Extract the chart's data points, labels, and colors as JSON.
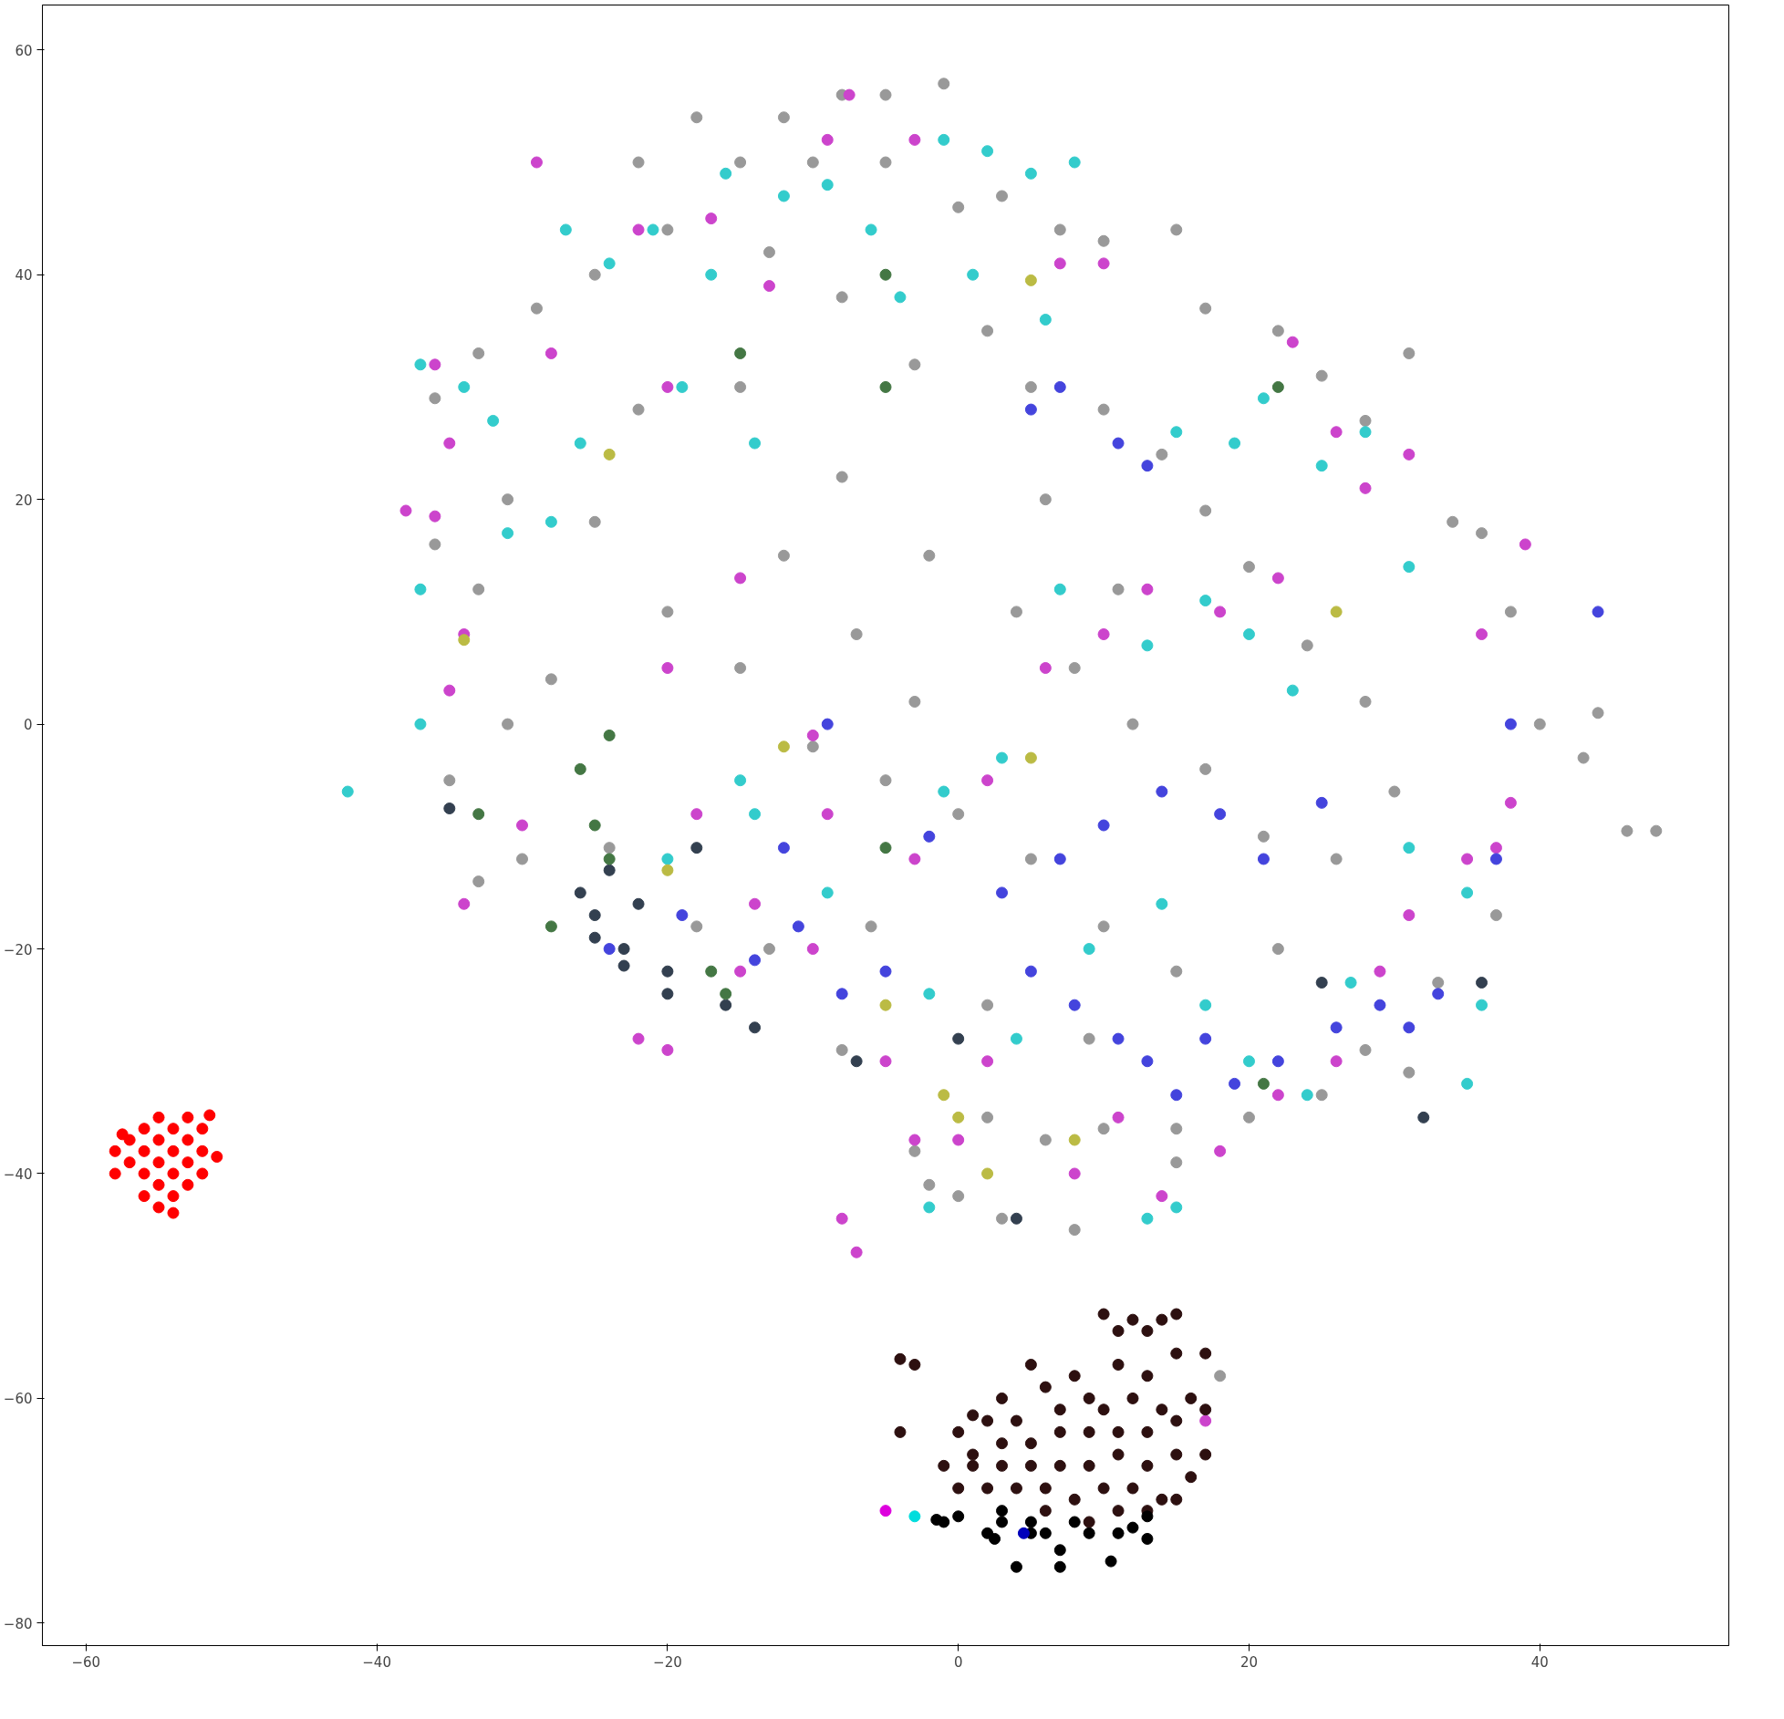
{
  "chart_data": {
    "type": "scatter",
    "marker": "circle",
    "xlim": [
      -63,
      53
    ],
    "ylim": [
      -82,
      64
    ],
    "xticks": [
      -60,
      -40,
      -20,
      0,
      20,
      40
    ],
    "yticks": [
      -80,
      -60,
      -40,
      -20,
      0,
      20,
      40,
      60
    ],
    "series": [
      {
        "color": "#999999",
        "x": [
          -8,
          -5,
          -1,
          -12,
          -18,
          -22,
          -15,
          -10,
          -5,
          0,
          3,
          7,
          10,
          15,
          17,
          22,
          25,
          28,
          31,
          34,
          36,
          38,
          40,
          43,
          44,
          46,
          48,
          37,
          33,
          31,
          28,
          25,
          20,
          15,
          10,
          6,
          2,
          -2,
          0,
          3,
          8,
          15,
          18,
          -3,
          -8,
          -13,
          -18,
          -24,
          -30,
          -33,
          -35,
          -31,
          -28,
          -33,
          -31,
          -36,
          -36,
          -33,
          -29,
          -25,
          -20,
          -13,
          -8,
          -3,
          2,
          5,
          10,
          14,
          17,
          20,
          24,
          28,
          30,
          26,
          22,
          15,
          10,
          5,
          0,
          -5,
          -10,
          -15,
          -20,
          -25,
          -22,
          -15,
          -8,
          -2,
          4,
          8,
          12,
          17,
          21,
          -7,
          -12,
          -3,
          6,
          11,
          2,
          -6,
          9
        ],
        "values": [
          56,
          56,
          57,
          54,
          54,
          50,
          50,
          50,
          50,
          46,
          47,
          44,
          43,
          44,
          37,
          35,
          31,
          27,
          33,
          18,
          17,
          10,
          0,
          -3,
          1,
          -9.5,
          -9.5,
          -17,
          -23,
          -31,
          -29,
          -33,
          -35,
          -36,
          -36,
          -37,
          -35,
          -41,
          -42,
          -44,
          -45,
          -39,
          -58,
          -38,
          -29,
          -20,
          -18,
          -11,
          -12,
          -14,
          -5,
          0,
          4,
          12,
          20,
          16,
          29,
          33,
          37,
          40,
          44,
          42,
          38,
          32,
          35,
          30,
          28,
          24,
          19,
          14,
          7,
          2,
          -6,
          -12,
          -20,
          -22,
          -18,
          -12,
          -8,
          -5,
          -2,
          5,
          10,
          18,
          28,
          30,
          22,
          15,
          10,
          5,
          0,
          -4,
          -10,
          8,
          15,
          2,
          20,
          12,
          -25,
          -18,
          -28
        ]
      },
      {
        "color": "#33cccc",
        "x": [
          -37,
          -37,
          -37,
          -42,
          -34,
          -32,
          -31,
          -27,
          -24,
          -21,
          -16,
          -12,
          -9,
          -6,
          -1,
          2,
          5,
          8,
          -4,
          1,
          6,
          -17,
          -19,
          -14,
          -26,
          -28,
          -20,
          -14,
          -9,
          -2,
          4,
          9,
          14,
          17,
          20,
          24,
          27,
          31,
          35,
          36,
          35,
          31,
          28,
          25,
          21,
          19,
          15,
          17,
          20,
          23,
          13,
          7,
          3,
          -1,
          -15,
          -2,
          15,
          13
        ],
        "values": [
          32,
          12,
          0,
          -6,
          30,
          27,
          17,
          44,
          41,
          44,
          49,
          47,
          48,
          44,
          52,
          51,
          49,
          50,
          38,
          40,
          36,
          40,
          30,
          25,
          25,
          18,
          -12,
          -8,
          -15,
          -24,
          -28,
          -20,
          -16,
          -25,
          -30,
          -33,
          -23,
          -11,
          -15,
          -25,
          -32,
          14,
          26,
          23,
          29,
          25,
          26,
          11,
          8,
          3,
          7,
          12,
          -3,
          -6,
          -5,
          -43,
          -43,
          -44
        ]
      },
      {
        "color": "#cc44cc",
        "x": [
          -29,
          -7.5,
          -28,
          -36,
          -38,
          -36,
          -35,
          -34,
          -35,
          -34,
          -30,
          -22,
          -20,
          -15,
          -10,
          -8,
          -7,
          -5,
          -3,
          0,
          2,
          8,
          11,
          14,
          18,
          22,
          26,
          29,
          31,
          35,
          37,
          38,
          39,
          36,
          31,
          28,
          23,
          26,
          22,
          18,
          13,
          10,
          6,
          2,
          -3,
          -9,
          -14,
          -18,
          -20,
          -15,
          -10,
          -22,
          -17,
          -9,
          -3,
          7,
          10,
          17,
          -20,
          -13
        ],
        "values": [
          50,
          56,
          33,
          32,
          19,
          18.5,
          25,
          8,
          3,
          -16,
          -9,
          -28,
          -29,
          -22,
          -20,
          -44,
          -47,
          -30,
          -37,
          -37,
          -30,
          -40,
          -35,
          -42,
          -38,
          -33,
          -30,
          -22,
          -17,
          -12,
          -11,
          -7,
          16,
          8,
          24,
          21,
          34,
          26,
          13,
          10,
          12,
          8,
          5,
          -5,
          -12,
          -8,
          -16,
          -8,
          5,
          13,
          -1,
          44,
          45,
          52,
          52,
          41,
          41,
          -62,
          30,
          39
        ]
      },
      {
        "color": "#4444dd",
        "x": [
          44,
          38,
          37,
          33,
          31,
          29,
          26,
          22,
          19,
          17,
          15,
          13,
          11,
          8,
          5,
          3,
          7,
          10,
          14,
          18,
          21,
          25,
          13,
          11,
          7,
          5,
          -2,
          -5,
          -8,
          -11,
          -14,
          -19,
          -24,
          -9,
          -12
        ],
        "values": [
          10,
          0,
          -12,
          -24,
          -27,
          -25,
          -27,
          -30,
          -32,
          -28,
          -33,
          -30,
          -28,
          -25,
          -22,
          -15,
          -12,
          -9,
          -6,
          -8,
          -12,
          -7,
          23,
          25,
          30,
          28,
          -10,
          -22,
          -24,
          -18,
          -21,
          -17,
          -20,
          0,
          -11
        ]
      },
      {
        "color": "#334050",
        "x": [
          -35,
          -26,
          -25,
          -25,
          -24,
          -23,
          -23,
          -22,
          -20,
          -20,
          -18,
          -16,
          -14,
          32,
          36,
          25,
          0,
          4,
          -7
        ],
        "values": [
          -7.5,
          -15,
          -17,
          -19,
          -13,
          -20,
          -21.5,
          -16,
          -22,
          -24,
          -11,
          -25,
          -27,
          -35,
          -23,
          -23,
          -28,
          -44,
          -30
        ]
      },
      {
        "color": "#447744",
        "x": [
          -28,
          -26,
          -25,
          -24,
          -24,
          -17,
          -16,
          -15,
          -5,
          -5,
          -5,
          21,
          22,
          -33
        ],
        "values": [
          -18,
          -4,
          -9,
          -1,
          -12,
          -22,
          -24,
          33,
          40,
          30,
          -11,
          -32,
          30,
          -8
        ]
      },
      {
        "color": "#bbbb44",
        "x": [
          0,
          -1,
          2,
          8,
          -5,
          5,
          -24,
          -34,
          -20,
          -12,
          5,
          26
        ],
        "values": [
          -35,
          -33,
          -40,
          -37,
          -25,
          39.5,
          24,
          7.5,
          -13,
          -2,
          -3,
          10
        ]
      },
      {
        "color": "#2d1010",
        "x": [
          10,
          12,
          14,
          15,
          11,
          13,
          -4,
          -3,
          1,
          3,
          5,
          6,
          8,
          9,
          11,
          13,
          15,
          17,
          16,
          14,
          12,
          10,
          7,
          4,
          2,
          0,
          -4,
          1,
          3,
          5,
          7,
          9,
          11,
          13,
          15,
          17,
          17,
          15,
          13,
          11,
          9,
          7,
          5,
          3,
          1,
          -1,
          2,
          4,
          6,
          8,
          10,
          12,
          14,
          16,
          0,
          6,
          9,
          11,
          13,
          15
        ],
        "values": [
          -52.5,
          -53,
          -53,
          -52.5,
          -54,
          -54,
          -56.5,
          -57,
          -61.5,
          -60,
          -57,
          -59,
          -58,
          -60,
          -57,
          -58,
          -56,
          -56,
          -60,
          -61,
          -60,
          -61,
          -61,
          -62,
          -62,
          -63,
          -63,
          -65,
          -64,
          -64,
          -63,
          -63,
          -63,
          -63,
          -62,
          -61,
          -65,
          -65,
          -66,
          -65,
          -66,
          -66,
          -66,
          -66,
          -66,
          -66,
          -68,
          -68,
          -68,
          -69,
          -68,
          -68,
          -69,
          -67,
          -68,
          -70,
          -71,
          -70,
          -70,
          -69
        ]
      },
      {
        "color": "#000000",
        "x": [
          -1,
          0,
          2,
          3,
          5,
          6,
          4,
          7,
          7,
          8,
          9,
          10.5,
          11,
          12,
          13,
          13,
          3,
          -1.5,
          2.5,
          5
        ],
        "values": [
          -71,
          -70.5,
          -72,
          -71,
          -71,
          -72,
          -75,
          -73.5,
          -75,
          -71,
          -72,
          -74.5,
          -72,
          -71.5,
          -72.5,
          -70.5,
          -70,
          -70.8,
          -72.5,
          -72
        ]
      },
      {
        "color": "#ff0000",
        "x": [
          -55,
          -53,
          -56,
          -54,
          -52,
          -57,
          -55,
          -53,
          -58,
          -56,
          -54,
          -52,
          -51,
          -57,
          -55,
          -53,
          -58,
          -56,
          -54,
          -52,
          -55,
          -53,
          -56,
          -54,
          -55,
          -54,
          -51.5,
          -57.5
        ],
        "values": [
          -35,
          -35,
          -36,
          -36,
          -36,
          -37,
          -37,
          -37,
          -38,
          -38,
          -38,
          -38,
          -38.5,
          -39,
          -39,
          -39,
          -40,
          -40,
          -40,
          -40,
          -41,
          -41,
          -42,
          -42,
          -43,
          -43.5,
          -34.8,
          -36.5
        ]
      },
      {
        "color": "#dd00dd",
        "x": [
          -5
        ],
        "values": [
          -70
        ]
      },
      {
        "color": "#00dddd",
        "x": [
          -3
        ],
        "values": [
          -70.5
        ]
      },
      {
        "color": "#0000bb",
        "x": [
          4.5
        ],
        "values": [
          -72
        ]
      }
    ]
  }
}
